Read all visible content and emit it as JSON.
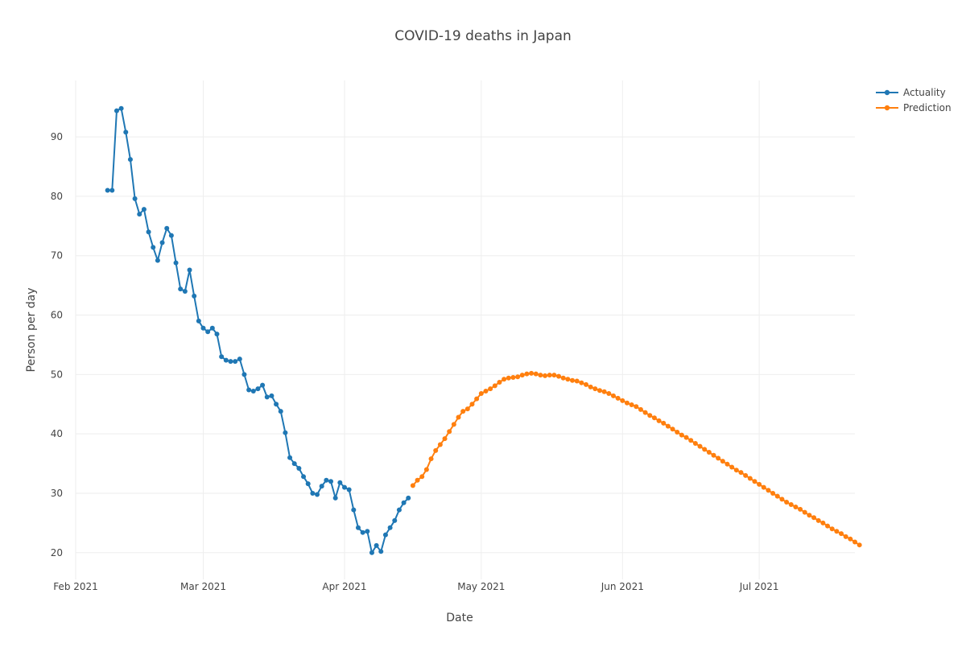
{
  "chart_data": {
    "type": "line",
    "title": "COVID-19 deaths in Japan",
    "xlabel": "Date",
    "ylabel": "Person per day",
    "x_ticks": [
      "Feb 2021",
      "Mar 2021",
      "Apr 2021",
      "May 2021",
      "Jun 2021",
      "Jul 2021"
    ],
    "x_tick_dates": [
      "2021-02-01",
      "2021-03-01",
      "2021-04-01",
      "2021-05-01",
      "2021-06-01",
      "2021-07-01"
    ],
    "y_ticks": [
      20,
      30,
      40,
      50,
      60,
      70,
      80,
      90
    ],
    "x_range": [
      "2021-02-01",
      "2021-07-22"
    ],
    "ylim": [
      15.5,
      99.5
    ],
    "grid": true,
    "legend_position": "top-right",
    "series": [
      {
        "name": "Actuality",
        "color": "#1f77b4",
        "x": [
          "2021-02-08",
          "2021-02-09",
          "2021-02-10",
          "2021-02-11",
          "2021-02-12",
          "2021-02-13",
          "2021-02-14",
          "2021-02-15",
          "2021-02-16",
          "2021-02-17",
          "2021-02-18",
          "2021-02-19",
          "2021-02-20",
          "2021-02-21",
          "2021-02-22",
          "2021-02-23",
          "2021-02-24",
          "2021-02-25",
          "2021-02-26",
          "2021-02-27",
          "2021-02-28",
          "2021-03-01",
          "2021-03-02",
          "2021-03-03",
          "2021-03-04",
          "2021-03-05",
          "2021-03-06",
          "2021-03-07",
          "2021-03-08",
          "2021-03-09",
          "2021-03-10",
          "2021-03-11",
          "2021-03-12",
          "2021-03-13",
          "2021-03-14",
          "2021-03-15",
          "2021-03-16",
          "2021-03-17",
          "2021-03-18",
          "2021-03-19",
          "2021-03-20",
          "2021-03-21",
          "2021-03-22",
          "2021-03-23",
          "2021-03-24",
          "2021-03-25",
          "2021-03-26",
          "2021-03-27",
          "2021-03-28",
          "2021-03-29",
          "2021-03-30",
          "2021-03-31",
          "2021-04-01",
          "2021-04-02",
          "2021-04-03",
          "2021-04-04",
          "2021-04-05",
          "2021-04-06",
          "2021-04-07",
          "2021-04-08",
          "2021-04-09",
          "2021-04-10",
          "2021-04-11",
          "2021-04-12",
          "2021-04-13",
          "2021-04-14",
          "2021-04-15"
        ],
        "y": [
          81.0,
          81.0,
          94.4,
          94.8,
          90.8,
          86.2,
          79.6,
          77.0,
          77.8,
          74.0,
          71.4,
          69.2,
          72.2,
          74.6,
          73.4,
          68.8,
          64.4,
          64.0,
          67.6,
          63.2,
          59.0,
          57.8,
          57.2,
          57.8,
          56.8,
          53.0,
          52.4,
          52.2,
          52.2,
          52.6,
          50.0,
          47.4,
          47.2,
          47.6,
          48.2,
          46.2,
          46.4,
          45.0,
          43.8,
          40.2,
          36.0,
          35.0,
          34.2,
          32.8,
          31.6,
          30.0,
          29.8,
          31.2,
          32.2,
          32.0,
          29.2,
          31.8,
          31.0,
          30.6,
          27.2,
          24.2,
          23.4,
          23.6,
          20.0,
          21.2,
          20.2,
          23.0,
          24.2,
          25.4,
          27.2,
          28.4,
          29.2
        ]
      },
      {
        "name": "Prediction",
        "color": "#ff7f0e",
        "x_start": "2021-04-16",
        "y": [
          31.3,
          32.2,
          32.8,
          34.0,
          35.8,
          37.2,
          38.2,
          39.2,
          40.4,
          41.6,
          42.8,
          43.8,
          44.2,
          45.0,
          45.9,
          46.8,
          47.2,
          47.6,
          48.1,
          48.7,
          49.2,
          49.4,
          49.5,
          49.6,
          49.9,
          50.1,
          50.2,
          50.1,
          49.9,
          49.8,
          49.9,
          49.9,
          49.7,
          49.4,
          49.2,
          49.0,
          48.9,
          48.6,
          48.3,
          47.9,
          47.6,
          47.3,
          47.1,
          46.8,
          46.4,
          46.0,
          45.6,
          45.2,
          44.9,
          44.6,
          44.1,
          43.6,
          43.1,
          42.7,
          42.2,
          41.8,
          41.3,
          40.8,
          40.3,
          39.8,
          39.4,
          38.9,
          38.4,
          37.9,
          37.4,
          36.9,
          36.4,
          35.9,
          35.4,
          34.9,
          34.4,
          33.9,
          33.5,
          33.0,
          32.5,
          32.0,
          31.5,
          31.0,
          30.5,
          30.0,
          29.5,
          29.0,
          28.5,
          28.1,
          27.7,
          27.3,
          26.8,
          26.3,
          25.9,
          25.4,
          25.0,
          24.5,
          24.0,
          23.6,
          23.2,
          22.7,
          22.3,
          21.8,
          21.3
        ]
      }
    ]
  }
}
